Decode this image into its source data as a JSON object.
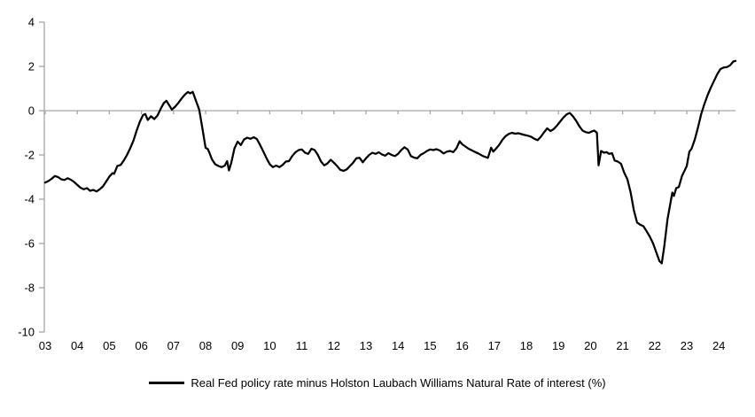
{
  "chart_data": {
    "type": "line",
    "title": "",
    "xlabel": "",
    "ylabel": "",
    "ylim": [
      -10,
      4
    ],
    "x_range_years": [
      2003.0,
      2024.55
    ],
    "grid": false,
    "zero_line": true,
    "legend_position": "bottom-center",
    "axis_color": "#a6a6a6",
    "text_color": "#000000",
    "y_ticks": [
      4,
      2,
      0,
      -2,
      -4,
      -6,
      -8,
      -10
    ],
    "x_ticks": [
      "03",
      "04",
      "05",
      "06",
      "07",
      "08",
      "09",
      "10",
      "11",
      "12",
      "13",
      "14",
      "15",
      "16",
      "17",
      "18",
      "19",
      "20",
      "21",
      "22",
      "23",
      "24"
    ],
    "series": [
      {
        "name": "Real Fed policy rate minus Holston Laubach Williams Natural Rate of interest (%)",
        "color": "#000000",
        "points": [
          [
            2003.0,
            -3.25
          ],
          [
            2003.1,
            -3.18
          ],
          [
            2003.2,
            -3.08
          ],
          [
            2003.3,
            -2.95
          ],
          [
            2003.4,
            -3.0
          ],
          [
            2003.5,
            -3.1
          ],
          [
            2003.6,
            -3.13
          ],
          [
            2003.7,
            -3.05
          ],
          [
            2003.8,
            -3.12
          ],
          [
            2003.9,
            -3.22
          ],
          [
            2004.0,
            -3.35
          ],
          [
            2004.1,
            -3.48
          ],
          [
            2004.2,
            -3.55
          ],
          [
            2004.3,
            -3.5
          ],
          [
            2004.4,
            -3.62
          ],
          [
            2004.5,
            -3.58
          ],
          [
            2004.6,
            -3.65
          ],
          [
            2004.7,
            -3.55
          ],
          [
            2004.8,
            -3.42
          ],
          [
            2004.9,
            -3.2
          ],
          [
            2005.0,
            -2.98
          ],
          [
            2005.1,
            -2.82
          ],
          [
            2005.15,
            -2.85
          ],
          [
            2005.25,
            -2.5
          ],
          [
            2005.35,
            -2.45
          ],
          [
            2005.45,
            -2.25
          ],
          [
            2005.55,
            -2.0
          ],
          [
            2005.65,
            -1.7
          ],
          [
            2005.75,
            -1.35
          ],
          [
            2005.85,
            -0.9
          ],
          [
            2005.95,
            -0.5
          ],
          [
            2006.05,
            -0.2
          ],
          [
            2006.12,
            -0.15
          ],
          [
            2006.2,
            -0.42
          ],
          [
            2006.3,
            -0.25
          ],
          [
            2006.4,
            -0.38
          ],
          [
            2006.5,
            -0.22
          ],
          [
            2006.6,
            0.08
          ],
          [
            2006.7,
            0.35
          ],
          [
            2006.78,
            0.45
          ],
          [
            2006.85,
            0.28
          ],
          [
            2006.95,
            0.05
          ],
          [
            2007.05,
            0.18
          ],
          [
            2007.15,
            0.35
          ],
          [
            2007.25,
            0.55
          ],
          [
            2007.35,
            0.72
          ],
          [
            2007.45,
            0.85
          ],
          [
            2007.52,
            0.78
          ],
          [
            2007.6,
            0.85
          ],
          [
            2007.7,
            0.45
          ],
          [
            2007.8,
            0.05
          ],
          [
            2007.9,
            -0.8
          ],
          [
            2008.0,
            -1.68
          ],
          [
            2008.07,
            -1.73
          ],
          [
            2008.12,
            -1.9
          ],
          [
            2008.2,
            -2.2
          ],
          [
            2008.3,
            -2.42
          ],
          [
            2008.4,
            -2.5
          ],
          [
            2008.5,
            -2.55
          ],
          [
            2008.6,
            -2.48
          ],
          [
            2008.67,
            -2.28
          ],
          [
            2008.73,
            -2.7
          ],
          [
            2008.8,
            -2.35
          ],
          [
            2008.9,
            -1.7
          ],
          [
            2009.0,
            -1.4
          ],
          [
            2009.1,
            -1.55
          ],
          [
            2009.2,
            -1.3
          ],
          [
            2009.3,
            -1.22
          ],
          [
            2009.4,
            -1.27
          ],
          [
            2009.5,
            -1.2
          ],
          [
            2009.6,
            -1.28
          ],
          [
            2009.7,
            -1.55
          ],
          [
            2009.8,
            -1.85
          ],
          [
            2009.9,
            -2.15
          ],
          [
            2010.0,
            -2.42
          ],
          [
            2010.1,
            -2.55
          ],
          [
            2010.2,
            -2.48
          ],
          [
            2010.3,
            -2.55
          ],
          [
            2010.4,
            -2.45
          ],
          [
            2010.5,
            -2.3
          ],
          [
            2010.6,
            -2.28
          ],
          [
            2010.7,
            -2.05
          ],
          [
            2010.8,
            -1.88
          ],
          [
            2010.9,
            -1.78
          ],
          [
            2011.0,
            -1.75
          ],
          [
            2011.1,
            -1.9
          ],
          [
            2011.2,
            -1.95
          ],
          [
            2011.3,
            -1.72
          ],
          [
            2011.4,
            -1.78
          ],
          [
            2011.5,
            -2.0
          ],
          [
            2011.6,
            -2.3
          ],
          [
            2011.7,
            -2.47
          ],
          [
            2011.8,
            -2.38
          ],
          [
            2011.9,
            -2.22
          ],
          [
            2012.0,
            -2.35
          ],
          [
            2012.1,
            -2.5
          ],
          [
            2012.2,
            -2.67
          ],
          [
            2012.3,
            -2.72
          ],
          [
            2012.4,
            -2.65
          ],
          [
            2012.5,
            -2.5
          ],
          [
            2012.6,
            -2.35
          ],
          [
            2012.7,
            -2.15
          ],
          [
            2012.8,
            -2.13
          ],
          [
            2012.9,
            -2.33
          ],
          [
            2013.0,
            -2.15
          ],
          [
            2013.1,
            -2.0
          ],
          [
            2013.2,
            -1.9
          ],
          [
            2013.3,
            -1.95
          ],
          [
            2013.4,
            -1.88
          ],
          [
            2013.5,
            -1.98
          ],
          [
            2013.6,
            -2.03
          ],
          [
            2013.7,
            -1.92
          ],
          [
            2013.8,
            -2.0
          ],
          [
            2013.9,
            -2.05
          ],
          [
            2014.0,
            -1.95
          ],
          [
            2014.1,
            -1.78
          ],
          [
            2014.2,
            -1.65
          ],
          [
            2014.3,
            -1.75
          ],
          [
            2014.4,
            -2.05
          ],
          [
            2014.5,
            -2.12
          ],
          [
            2014.6,
            -2.15
          ],
          [
            2014.7,
            -2.0
          ],
          [
            2014.8,
            -1.92
          ],
          [
            2014.9,
            -1.82
          ],
          [
            2015.0,
            -1.75
          ],
          [
            2015.1,
            -1.78
          ],
          [
            2015.2,
            -1.74
          ],
          [
            2015.3,
            -1.8
          ],
          [
            2015.42,
            -1.93
          ],
          [
            2015.52,
            -1.85
          ],
          [
            2015.62,
            -1.82
          ],
          [
            2015.72,
            -1.87
          ],
          [
            2015.82,
            -1.7
          ],
          [
            2015.92,
            -1.38
          ],
          [
            2016.0,
            -1.52
          ],
          [
            2016.1,
            -1.62
          ],
          [
            2016.2,
            -1.72
          ],
          [
            2016.35,
            -1.83
          ],
          [
            2016.5,
            -1.93
          ],
          [
            2016.65,
            -2.05
          ],
          [
            2016.8,
            -2.13
          ],
          [
            2016.9,
            -1.67
          ],
          [
            2016.97,
            -1.85
          ],
          [
            2017.05,
            -1.72
          ],
          [
            2017.15,
            -1.55
          ],
          [
            2017.25,
            -1.32
          ],
          [
            2017.35,
            -1.15
          ],
          [
            2017.45,
            -1.05
          ],
          [
            2017.55,
            -1.0
          ],
          [
            2017.65,
            -1.04
          ],
          [
            2017.75,
            -1.02
          ],
          [
            2017.85,
            -1.06
          ],
          [
            2017.95,
            -1.1
          ],
          [
            2018.05,
            -1.13
          ],
          [
            2018.15,
            -1.18
          ],
          [
            2018.25,
            -1.27
          ],
          [
            2018.35,
            -1.33
          ],
          [
            2018.45,
            -1.18
          ],
          [
            2018.55,
            -0.98
          ],
          [
            2018.65,
            -0.8
          ],
          [
            2018.75,
            -0.92
          ],
          [
            2018.85,
            -0.83
          ],
          [
            2018.95,
            -0.68
          ],
          [
            2019.05,
            -0.5
          ],
          [
            2019.15,
            -0.32
          ],
          [
            2019.25,
            -0.17
          ],
          [
            2019.35,
            -0.1
          ],
          [
            2019.45,
            -0.25
          ],
          [
            2019.55,
            -0.45
          ],
          [
            2019.65,
            -0.7
          ],
          [
            2019.75,
            -0.9
          ],
          [
            2019.85,
            -0.97
          ],
          [
            2019.95,
            -1.0
          ],
          [
            2020.05,
            -0.93
          ],
          [
            2020.12,
            -0.9
          ],
          [
            2020.2,
            -1.0
          ],
          [
            2020.25,
            -2.47
          ],
          [
            2020.33,
            -1.82
          ],
          [
            2020.42,
            -1.9
          ],
          [
            2020.5,
            -1.87
          ],
          [
            2020.58,
            -1.95
          ],
          [
            2020.67,
            -1.92
          ],
          [
            2020.75,
            -2.25
          ],
          [
            2020.85,
            -2.3
          ],
          [
            2020.95,
            -2.4
          ],
          [
            2021.05,
            -2.8
          ],
          [
            2021.15,
            -3.1
          ],
          [
            2021.25,
            -3.7
          ],
          [
            2021.35,
            -4.5
          ],
          [
            2021.45,
            -5.05
          ],
          [
            2021.55,
            -5.15
          ],
          [
            2021.65,
            -5.22
          ],
          [
            2021.75,
            -5.45
          ],
          [
            2021.85,
            -5.7
          ],
          [
            2021.95,
            -6.0
          ],
          [
            2022.05,
            -6.4
          ],
          [
            2022.15,
            -6.8
          ],
          [
            2022.22,
            -6.9
          ],
          [
            2022.3,
            -6.1
          ],
          [
            2022.4,
            -4.9
          ],
          [
            2022.5,
            -4.1
          ],
          [
            2022.55,
            -3.7
          ],
          [
            2022.6,
            -3.85
          ],
          [
            2022.67,
            -3.5
          ],
          [
            2022.75,
            -3.45
          ],
          [
            2022.85,
            -2.95
          ],
          [
            2022.95,
            -2.65
          ],
          [
            2023.0,
            -2.5
          ],
          [
            2023.08,
            -1.85
          ],
          [
            2023.15,
            -1.72
          ],
          [
            2023.25,
            -1.3
          ],
          [
            2023.35,
            -0.75
          ],
          [
            2023.45,
            -0.15
          ],
          [
            2023.55,
            0.3
          ],
          [
            2023.65,
            0.7
          ],
          [
            2023.75,
            1.05
          ],
          [
            2023.85,
            1.35
          ],
          [
            2023.95,
            1.65
          ],
          [
            2024.05,
            1.88
          ],
          [
            2024.15,
            1.95
          ],
          [
            2024.25,
            1.97
          ],
          [
            2024.35,
            2.05
          ],
          [
            2024.45,
            2.22
          ],
          [
            2024.52,
            2.25
          ]
        ]
      }
    ]
  },
  "legend": {
    "label": "Real Fed policy rate minus Holston Laubach Williams Natural Rate of interest (%)"
  }
}
